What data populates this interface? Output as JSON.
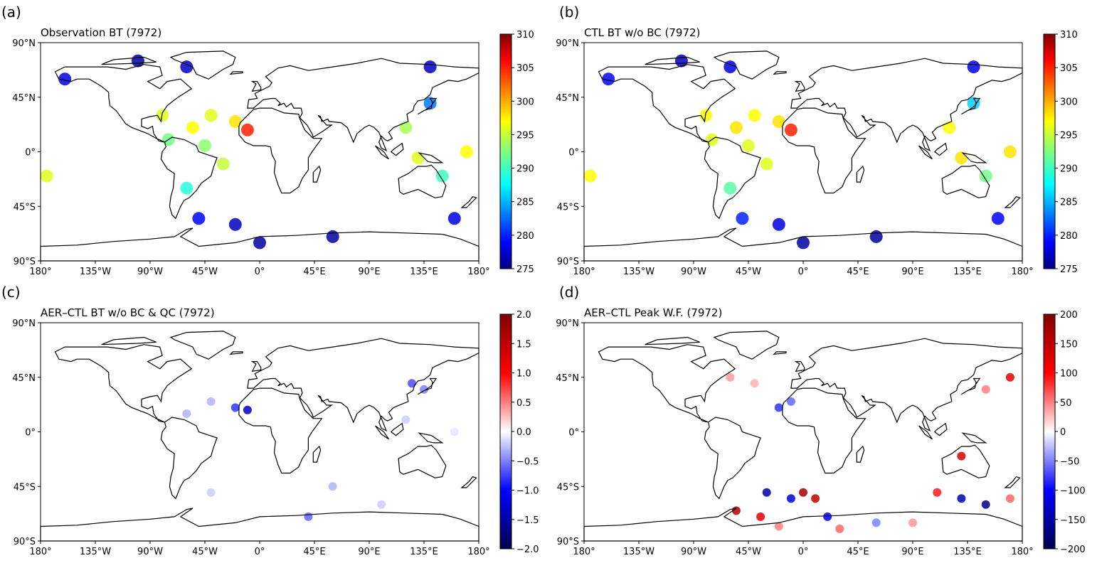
{
  "figure": {
    "panels": [
      {
        "letter": "(a)",
        "title": "Observation BT (7972)"
      },
      {
        "letter": "(b)",
        "title": "CTL BT w/o BC (7972)"
      },
      {
        "letter": "(c)",
        "title": "AER–CTL BT w/o BC & QC (7972)"
      },
      {
        "letter": "(d)",
        "title": "AER–CTL Peak W.F. (7972)"
      }
    ]
  },
  "chart_data": [
    {
      "type": "scatter",
      "title": "Observation BT (7972)",
      "xlabel": "",
      "ylabel": "",
      "xlim": [
        -180,
        180
      ],
      "ylim": [
        -90,
        90
      ],
      "x_ticks": [
        "180°",
        "135°W",
        "90°W",
        "45°W",
        "0°",
        "45°E",
        "90°E",
        "135°E",
        "180°"
      ],
      "y_ticks": [
        "90°N",
        "45°N",
        "0°",
        "45°S",
        "90°S"
      ],
      "colorbar": {
        "colormap": "jet",
        "min": 275,
        "max": 310,
        "ticks": [
          "310",
          "305",
          "300",
          "295",
          "290",
          "285",
          "280",
          "275"
        ]
      },
      "series": [
        {
          "values": [
            {
              "lon": -160,
              "lat": 60,
              "bt": 278
            },
            {
              "lon": -100,
              "lat": 75,
              "bt": 276
            },
            {
              "lon": -60,
              "lat": 70,
              "bt": 277
            },
            {
              "lon": -80,
              "lat": 30,
              "bt": 296
            },
            {
              "lon": -75,
              "lat": 10,
              "bt": 292
            },
            {
              "lon": -55,
              "lat": 20,
              "bt": 297
            },
            {
              "lon": -45,
              "lat": 5,
              "bt": 293
            },
            {
              "lon": -40,
              "lat": 30,
              "bt": 296
            },
            {
              "lon": -30,
              "lat": -10,
              "bt": 295
            },
            {
              "lon": -20,
              "lat": 25,
              "bt": 298
            },
            {
              "lon": -10,
              "lat": 18,
              "bt": 305
            },
            {
              "lon": -60,
              "lat": -30,
              "bt": 289
            },
            {
              "lon": -50,
              "lat": -55,
              "bt": 279
            },
            {
              "lon": -20,
              "lat": -60,
              "bt": 277
            },
            {
              "lon": 0,
              "lat": -75,
              "bt": 276
            },
            {
              "lon": 60,
              "lat": -70,
              "bt": 276
            },
            {
              "lon": 120,
              "lat": 20,
              "bt": 294
            },
            {
              "lon": 130,
              "lat": -5,
              "bt": 296
            },
            {
              "lon": 140,
              "lat": 40,
              "bt": 283
            },
            {
              "lon": 150,
              "lat": -20,
              "bt": 290
            },
            {
              "lon": 170,
              "lat": 0,
              "bt": 297
            },
            {
              "lon": 160,
              "lat": -55,
              "bt": 278
            },
            {
              "lon": -175,
              "lat": -20,
              "bt": 296
            },
            {
              "lon": 140,
              "lat": 70,
              "bt": 277
            }
          ]
        }
      ]
    },
    {
      "type": "scatter",
      "title": "CTL BT w/o BC (7972)",
      "xlabel": "",
      "ylabel": "",
      "xlim": [
        -180,
        180
      ],
      "ylim": [
        -90,
        90
      ],
      "x_ticks": [
        "180°",
        "135°W",
        "90°W",
        "45°W",
        "0°",
        "45°E",
        "90°E",
        "135°E",
        "180°"
      ],
      "y_ticks": [
        "90°N",
        "45°N",
        "0°",
        "45°S",
        "90°S"
      ],
      "colorbar": {
        "colormap": "jet",
        "min": 275,
        "max": 310,
        "ticks": [
          "310",
          "305",
          "300",
          "295",
          "290",
          "285",
          "280",
          "275"
        ]
      },
      "series": [
        {
          "values": [
            {
              "lon": -160,
              "lat": 60,
              "bt": 279
            },
            {
              "lon": -100,
              "lat": 75,
              "bt": 277
            },
            {
              "lon": -60,
              "lat": 70,
              "bt": 278
            },
            {
              "lon": -80,
              "lat": 30,
              "bt": 297
            },
            {
              "lon": -75,
              "lat": 10,
              "bt": 296
            },
            {
              "lon": -55,
              "lat": 20,
              "bt": 298
            },
            {
              "lon": -45,
              "lat": 5,
              "bt": 296
            },
            {
              "lon": -40,
              "lat": 30,
              "bt": 297
            },
            {
              "lon": -30,
              "lat": -10,
              "bt": 296
            },
            {
              "lon": -20,
              "lat": 25,
              "bt": 298
            },
            {
              "lon": -10,
              "lat": 18,
              "bt": 305
            },
            {
              "lon": -60,
              "lat": -30,
              "bt": 291
            },
            {
              "lon": -50,
              "lat": -55,
              "bt": 280
            },
            {
              "lon": -20,
              "lat": -60,
              "bt": 278
            },
            {
              "lon": 0,
              "lat": -75,
              "bt": 276
            },
            {
              "lon": 60,
              "lat": -70,
              "bt": 276
            },
            {
              "lon": 120,
              "lat": 20,
              "bt": 297
            },
            {
              "lon": 130,
              "lat": -5,
              "bt": 298
            },
            {
              "lon": 140,
              "lat": 40,
              "bt": 286
            },
            {
              "lon": 150,
              "lat": -20,
              "bt": 292
            },
            {
              "lon": 170,
              "lat": 0,
              "bt": 298
            },
            {
              "lon": 160,
              "lat": -55,
              "bt": 279
            },
            {
              "lon": -175,
              "lat": -20,
              "bt": 297
            },
            {
              "lon": 140,
              "lat": 70,
              "bt": 278
            }
          ]
        }
      ]
    },
    {
      "type": "scatter",
      "title": "AER–CTL BT w/o BC & QC (7972)",
      "xlabel": "",
      "ylabel": "",
      "xlim": [
        -180,
        180
      ],
      "ylim": [
        -90,
        90
      ],
      "x_ticks": [
        "180°",
        "135°W",
        "90°W",
        "45°W",
        "0°",
        "45°E",
        "90°E",
        "135°E",
        "180°"
      ],
      "y_ticks": [
        "90°N",
        "45°N",
        "0°",
        "45°S",
        "90°S"
      ],
      "colorbar": {
        "colormap": "seismic",
        "min": -2.0,
        "max": 2.0,
        "ticks": [
          "2.0",
          "1.5",
          "1.0",
          "0.5",
          "0.0",
          "−0.5",
          "−1.0",
          "−1.5",
          "−2.0"
        ]
      },
      "series": [
        {
          "values": [
            {
              "lon": -10,
              "lat": 18,
              "dbt": -1.4
            },
            {
              "lon": -20,
              "lat": 20,
              "dbt": -0.8
            },
            {
              "lon": -40,
              "lat": 25,
              "dbt": -0.3
            },
            {
              "lon": -60,
              "lat": 15,
              "dbt": -0.3
            },
            {
              "lon": 125,
              "lat": 40,
              "dbt": -0.7
            },
            {
              "lon": 135,
              "lat": 35,
              "dbt": -0.5
            },
            {
              "lon": 120,
              "lat": 10,
              "dbt": -0.2
            },
            {
              "lon": 60,
              "lat": -45,
              "dbt": -0.3
            },
            {
              "lon": 40,
              "lat": -70,
              "dbt": -0.6
            },
            {
              "lon": -40,
              "lat": -50,
              "dbt": -0.2
            },
            {
              "lon": 100,
              "lat": -60,
              "dbt": -0.2
            },
            {
              "lon": 160,
              "lat": 0,
              "dbt": -0.1
            }
          ]
        }
      ]
    },
    {
      "type": "scatter",
      "title": "AER–CTL Peak W.F. (7972)",
      "xlabel": "",
      "ylabel": "",
      "xlim": [
        -180,
        180
      ],
      "ylim": [
        -90,
        90
      ],
      "x_ticks": [
        "180°",
        "135°W",
        "90°W",
        "45°W",
        "0°",
        "45°E",
        "90°E",
        "135°E",
        "180°"
      ],
      "y_ticks": [
        "90°N",
        "45°N",
        "0°",
        "45°S",
        "90°S"
      ],
      "colorbar": {
        "colormap": "seismic",
        "min": -200,
        "max": 200,
        "ticks": [
          "200",
          "150",
          "100",
          "50",
          "0",
          "−50",
          "−100",
          "−150",
          "−200"
        ]
      },
      "series": [
        {
          "values": [
            {
              "lon": -60,
              "lat": 45,
              "dwf": 40
            },
            {
              "lon": -40,
              "lat": 40,
              "dwf": 30
            },
            {
              "lon": -10,
              "lat": 25,
              "dwf": -60
            },
            {
              "lon": -20,
              "lat": 20,
              "dwf": -80
            },
            {
              "lon": 170,
              "lat": 45,
              "dwf": 120
            },
            {
              "lon": 150,
              "lat": 35,
              "dwf": 50
            },
            {
              "lon": 130,
              "lat": -20,
              "dwf": 130
            },
            {
              "lon": -30,
              "lat": -50,
              "dwf": -150
            },
            {
              "lon": -10,
              "lat": -55,
              "dwf": -120
            },
            {
              "lon": 0,
              "lat": -50,
              "dwf": 170
            },
            {
              "lon": 10,
              "lat": -55,
              "dwf": 150
            },
            {
              "lon": -55,
              "lat": -65,
              "dwf": 160
            },
            {
              "lon": -35,
              "lat": -70,
              "dwf": 120
            },
            {
              "lon": 20,
              "lat": -70,
              "dwf": -100
            },
            {
              "lon": 110,
              "lat": -50,
              "dwf": 90
            },
            {
              "lon": 130,
              "lat": -55,
              "dwf": -140
            },
            {
              "lon": 150,
              "lat": -60,
              "dwf": -170
            },
            {
              "lon": 170,
              "lat": -55,
              "dwf": 60
            },
            {
              "lon": 60,
              "lat": -75,
              "dwf": -50
            },
            {
              "lon": 90,
              "lat": -75,
              "dwf": 40
            },
            {
              "lon": 30,
              "lat": -80,
              "dwf": 60
            },
            {
              "lon": -20,
              "lat": -78,
              "dwf": 50
            }
          ]
        }
      ]
    }
  ]
}
